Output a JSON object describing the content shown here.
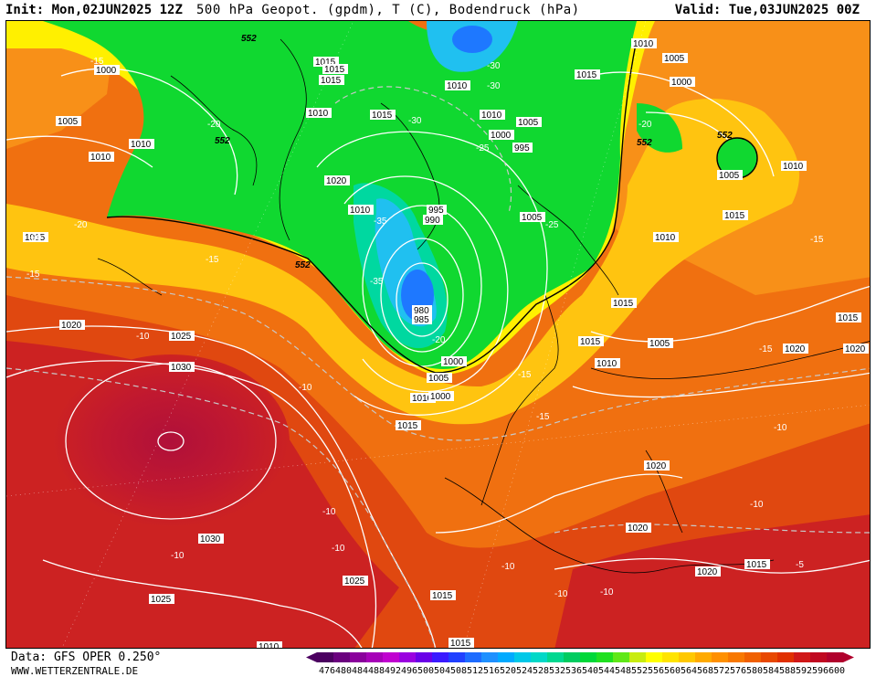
{
  "header": {
    "init_label": "Init:",
    "init_value": "Mon,02JUN2025 12Z",
    "title": "500 hPa Geopot. (gpdm), T (C), Bodendruck (hPa)",
    "valid_label": "Valid:",
    "valid_value": "Tue,03JUN2025 00Z"
  },
  "footer": {
    "data_source": "Data: GFS OPER 0.250°",
    "website": "WWW.WETTERZENTRALE.DE"
  },
  "legend": {
    "values": [
      "476",
      "480",
      "484",
      "488",
      "492",
      "496",
      "500",
      "504",
      "508",
      "512",
      "516",
      "520",
      "524",
      "528",
      "532",
      "536",
      "540",
      "544",
      "548",
      "552",
      "556",
      "560",
      "564",
      "568",
      "572",
      "576",
      "580",
      "584",
      "588",
      "592",
      "596",
      "600"
    ],
    "colors": [
      "#4b0060",
      "#6a007e",
      "#8a009c",
      "#a600b8",
      "#c000d0",
      "#9a00e0",
      "#6a00e8",
      "#3a1aff",
      "#2040ff",
      "#1d6cff",
      "#1e90ff",
      "#00aaff",
      "#00c8e8",
      "#00d8c8",
      "#00d890",
      "#00cc60",
      "#00d838",
      "#20e020",
      "#60e818",
      "#c8ec10",
      "#ffff00",
      "#ffe400",
      "#ffc800",
      "#ffaa00",
      "#ff9000",
      "#f87800",
      "#f06000",
      "#e84800",
      "#e03000",
      "#d01818",
      "#c00820",
      "#b0002c"
    ]
  },
  "map_colors": {
    "deep_red": "#b0103a",
    "red": "#cc2222",
    "red_orange": "#e04810",
    "orange": "#f07010",
    "light_orange": "#f89018",
    "yellow_orange": "#ffc410",
    "yellow": "#fff000",
    "green": "#10d830",
    "light_green": "#40e850",
    "cyan_green": "#00d8a0",
    "cyan": "#20c0f0",
    "blue": "#1e78ff"
  },
  "isobar_labels": [
    "1000",
    "1005",
    "1010",
    "1015",
    "1020",
    "1025",
    "1030",
    "995",
    "990",
    "985",
    "980"
  ],
  "temp_labels": [
    "-15",
    "-20",
    "-25",
    "-30",
    "-35",
    "-10",
    "-5"
  ],
  "geopot_labels": [
    "552",
    "552",
    "552",
    "552",
    "552",
    "552",
    "552"
  ],
  "map_labels": [
    {
      "t": "552",
      "k": "g"
    },
    {
      "t": "1000",
      "k": "c"
    },
    {
      "t": "1005",
      "k": "c"
    },
    {
      "t": "1010",
      "k": "c"
    },
    {
      "t": "-15",
      "k": "t"
    },
    {
      "t": "1015",
      "k": "c"
    },
    {
      "t": "-20",
      "k": "t"
    },
    {
      "t": "552",
      "k": "g"
    },
    {
      "t": "1010",
      "k": "c"
    },
    {
      "t": "1015",
      "k": "c"
    },
    {
      "t": "1015",
      "k": "c"
    },
    {
      "t": "1010",
      "k": "c"
    },
    {
      "t": "1015",
      "k": "c"
    },
    {
      "t": "-30",
      "k": "t"
    },
    {
      "t": "-30",
      "k": "t"
    },
    {
      "t": "1010",
      "k": "c"
    },
    {
      "t": "1010",
      "k": "c"
    },
    {
      "t": "1020",
      "k": "c"
    },
    {
      "t": "1010",
      "k": "c"
    },
    {
      "t": "-35",
      "k": "t"
    },
    {
      "t": "995",
      "k": "c"
    },
    {
      "t": "990",
      "k": "c"
    },
    {
      "t": "-25",
      "k": "t"
    },
    {
      "t": "995",
      "k": "c"
    },
    {
      "t": "1000",
      "k": "c"
    },
    {
      "t": "1005",
      "k": "c"
    },
    {
      "t": "1005",
      "k": "c"
    },
    {
      "t": "-25",
      "k": "t"
    },
    {
      "t": "-35",
      "k": "t"
    },
    {
      "t": "980",
      "k": "c"
    },
    {
      "t": "985",
      "k": "c"
    },
    {
      "t": "-20",
      "k": "t"
    },
    {
      "t": "1000",
      "k": "c"
    },
    {
      "t": "1005",
      "k": "c"
    },
    {
      "t": "1010",
      "k": "c"
    },
    {
      "t": "1015",
      "k": "c"
    },
    {
      "t": "-30",
      "k": "t"
    },
    {
      "t": "1010",
      "k": "c"
    },
    {
      "t": "1005",
      "k": "c"
    },
    {
      "t": "1000",
      "k": "c"
    },
    {
      "t": "-20",
      "k": "t"
    },
    {
      "t": "552",
      "k": "g"
    },
    {
      "t": "552",
      "k": "g"
    },
    {
      "t": "1005",
      "k": "c"
    },
    {
      "t": "1010",
      "k": "c"
    },
    {
      "t": "1015",
      "k": "c"
    },
    {
      "t": "1010",
      "k": "c"
    },
    {
      "t": "-15",
      "k": "t"
    },
    {
      "t": "1015",
      "k": "c"
    },
    {
      "t": "-15",
      "k": "t"
    },
    {
      "t": "-20",
      "k": "t"
    },
    {
      "t": "552",
      "k": "g"
    },
    {
      "t": "-15",
      "k": "t"
    },
    {
      "t": "1020",
      "k": "c"
    },
    {
      "t": "-10",
      "k": "t"
    },
    {
      "t": "1025",
      "k": "c"
    },
    {
      "t": "1030",
      "k": "c"
    },
    {
      "t": "-10",
      "k": "t"
    },
    {
      "t": "1015",
      "k": "c"
    },
    {
      "t": "-15",
      "k": "t"
    },
    {
      "t": "1010",
      "k": "c"
    },
    {
      "t": "1005",
      "k": "c"
    },
    {
      "t": "1000",
      "k": "c"
    },
    {
      "t": "-15",
      "k": "t"
    },
    {
      "t": "-20",
      "k": "t"
    },
    {
      "t": "1015",
      "k": "c"
    },
    {
      "t": "1015",
      "k": "c"
    },
    {
      "t": "-15",
      "k": "t"
    },
    {
      "t": "1020",
      "k": "c"
    },
    {
      "t": "-10",
      "k": "t"
    },
    {
      "t": "1015",
      "k": "c"
    },
    {
      "t": "1020",
      "k": "c"
    },
    {
      "t": "1020",
      "k": "c"
    },
    {
      "t": "-10",
      "k": "t"
    },
    {
      "t": "1020",
      "k": "c"
    },
    {
      "t": "-5",
      "k": "t"
    },
    {
      "t": "1015",
      "k": "c"
    },
    {
      "t": "-10",
      "k": "t"
    },
    {
      "t": "1020",
      "k": "c"
    },
    {
      "t": "1015",
      "k": "c"
    },
    {
      "t": "-10",
      "k": "t"
    },
    {
      "t": "-10",
      "k": "t"
    },
    {
      "t": "-10",
      "k": "t"
    },
    {
      "t": "1030",
      "k": "c"
    },
    {
      "t": "1025",
      "k": "c"
    },
    {
      "t": "1025",
      "k": "c"
    },
    {
      "t": "-10",
      "k": "t"
    },
    {
      "t": "-10",
      "k": "t"
    },
    {
      "t": "1015",
      "k": "c"
    },
    {
      "t": "1010",
      "k": "c"
    }
  ]
}
